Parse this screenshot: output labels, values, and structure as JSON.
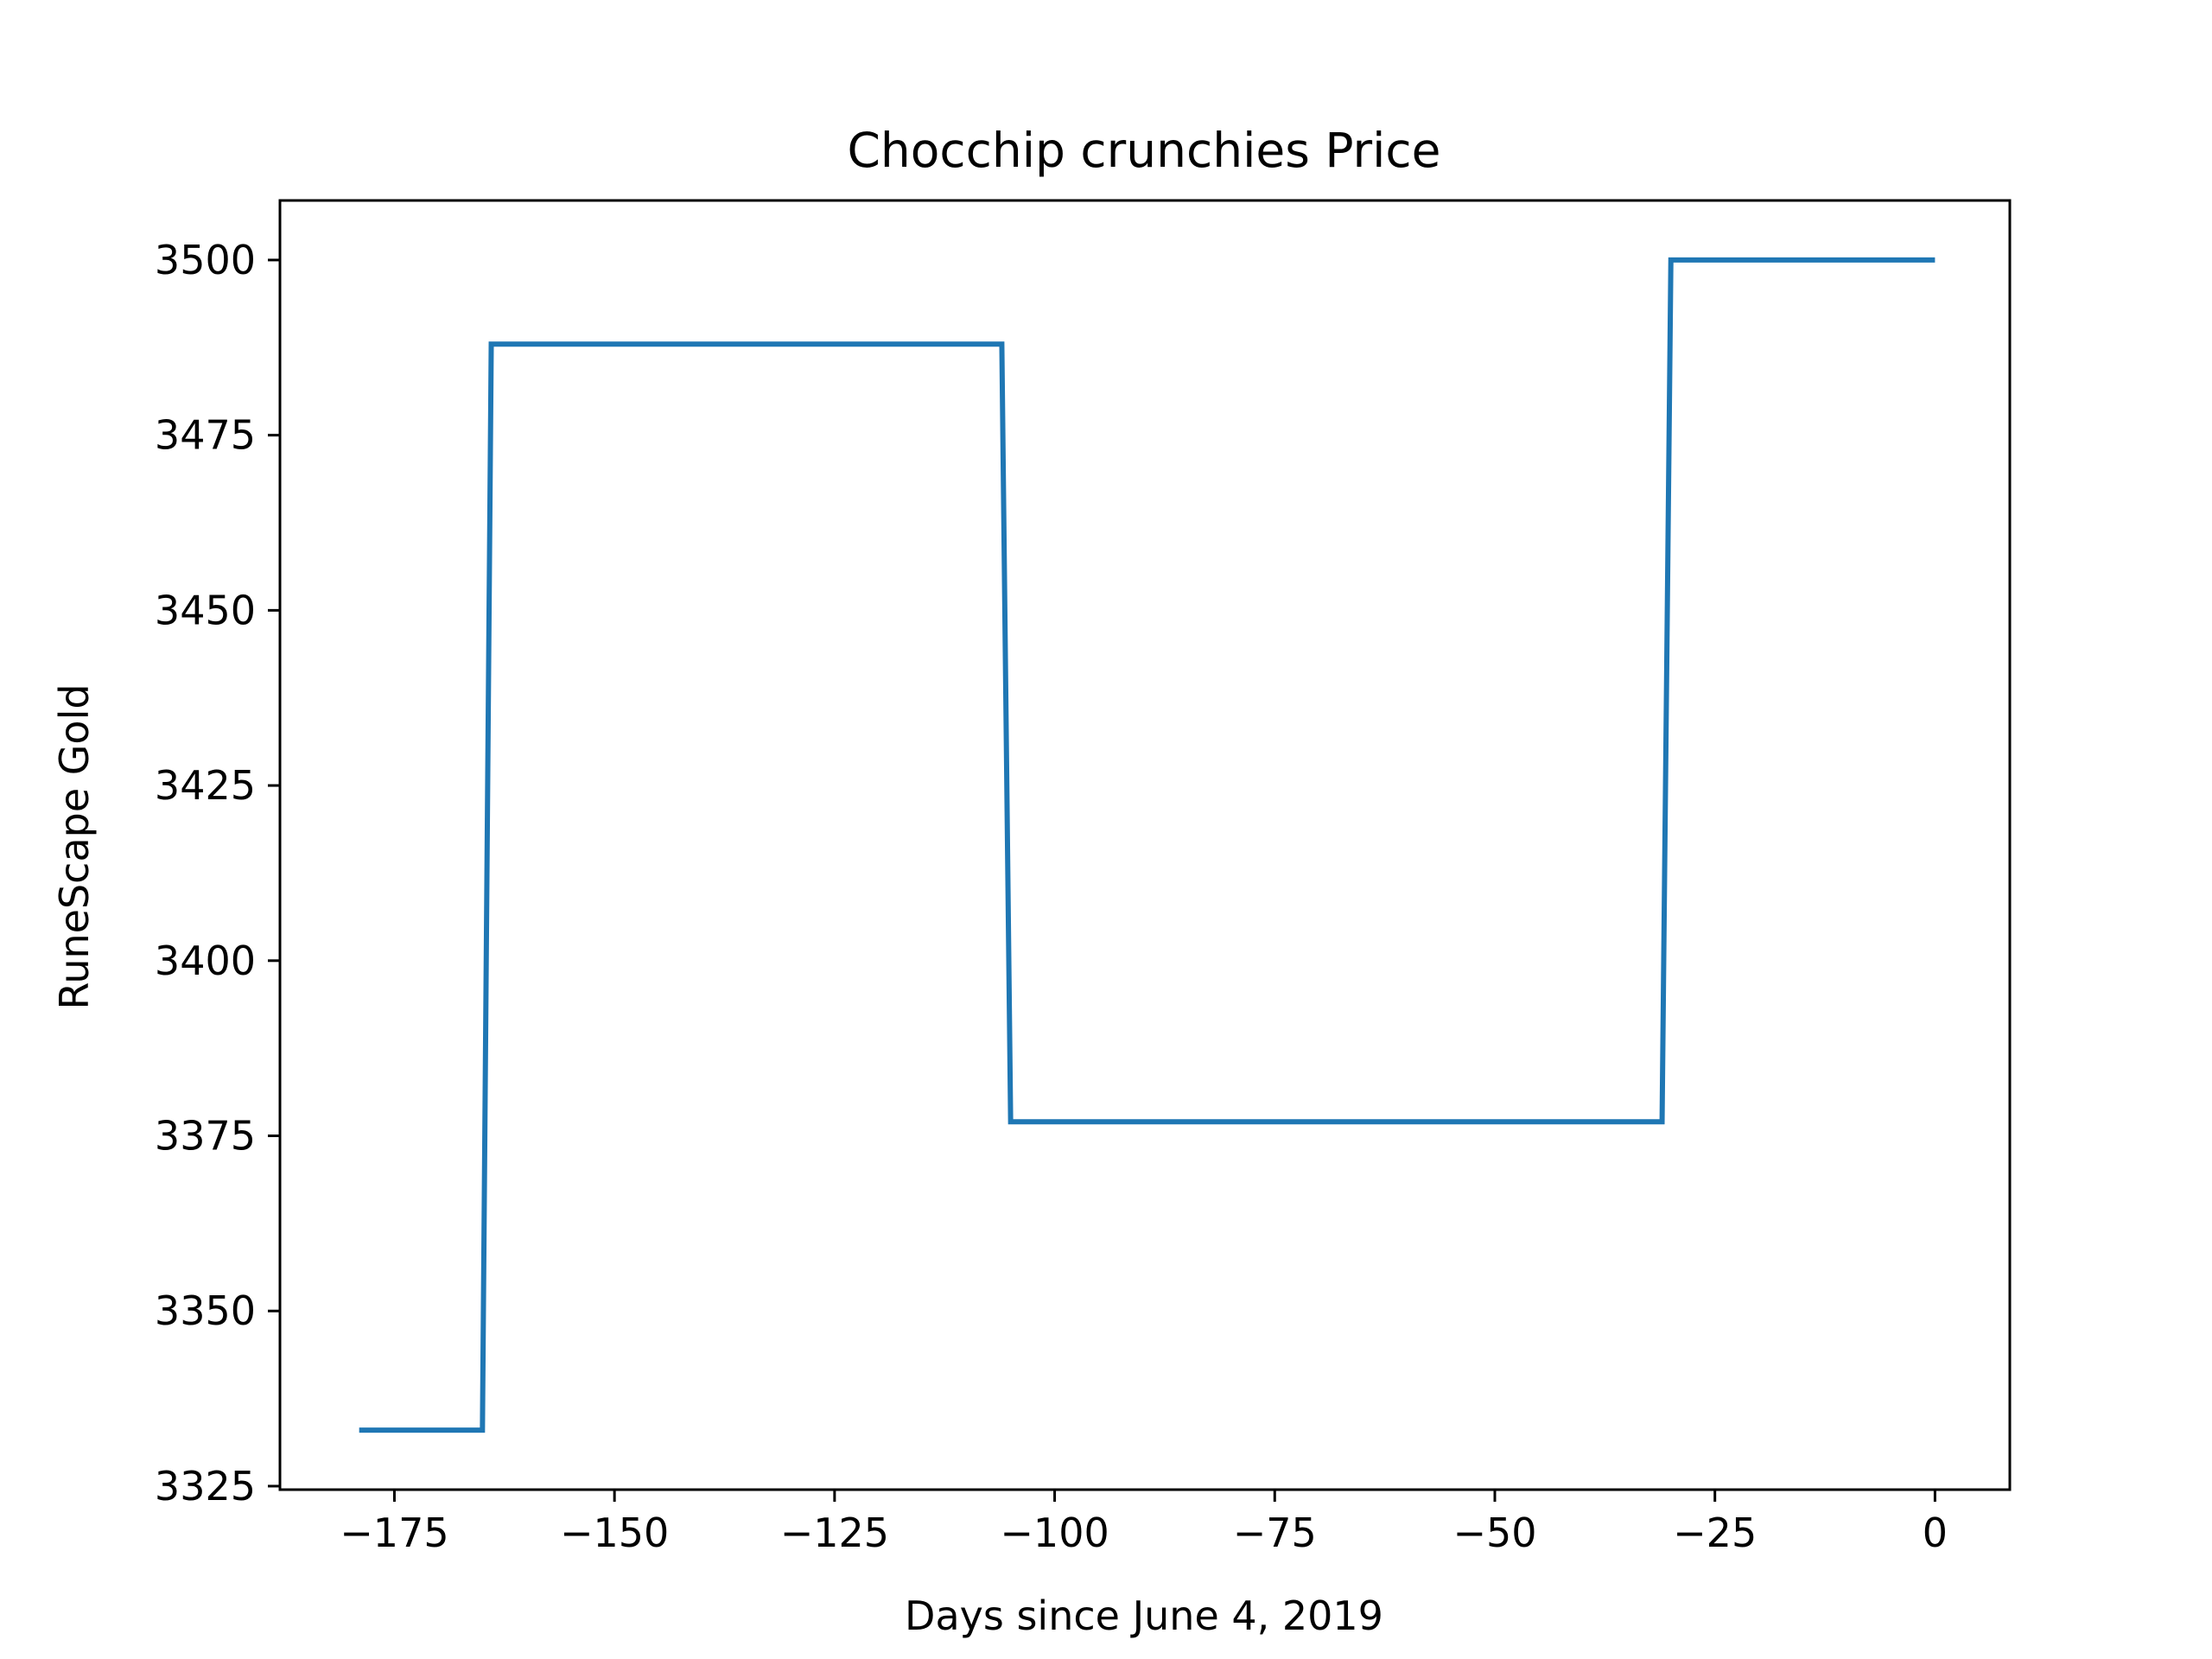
{
  "chart_data": {
    "type": "line",
    "title": "Chocchip crunchies Price",
    "xlabel": "Days since June 4, 2019",
    "ylabel": "RuneScape Gold",
    "xlim": [
      -188,
      8.5
    ],
    "ylim": [
      3324.5,
      3508.5
    ],
    "xticks": [
      -175,
      -150,
      -125,
      -100,
      -75,
      -50,
      -25,
      0
    ],
    "xtick_labels": [
      "−175",
      "−150",
      "−125",
      "−100",
      "−75",
      "−50",
      "−25",
      "0"
    ],
    "yticks": [
      3325,
      3350,
      3375,
      3400,
      3425,
      3450,
      3475,
      3500
    ],
    "ytick_labels": [
      "3325",
      "3350",
      "3375",
      "3400",
      "3425",
      "3450",
      "3475",
      "3500"
    ],
    "grid": false,
    "series": [
      {
        "color": "#1f77b4",
        "x": [
          -179,
          -165,
          -164,
          -106,
          -105,
          -31,
          -30,
          0
        ],
        "y": [
          3333,
          3333,
          3488,
          3488,
          3377,
          3377,
          3500,
          3500
        ]
      }
    ]
  }
}
